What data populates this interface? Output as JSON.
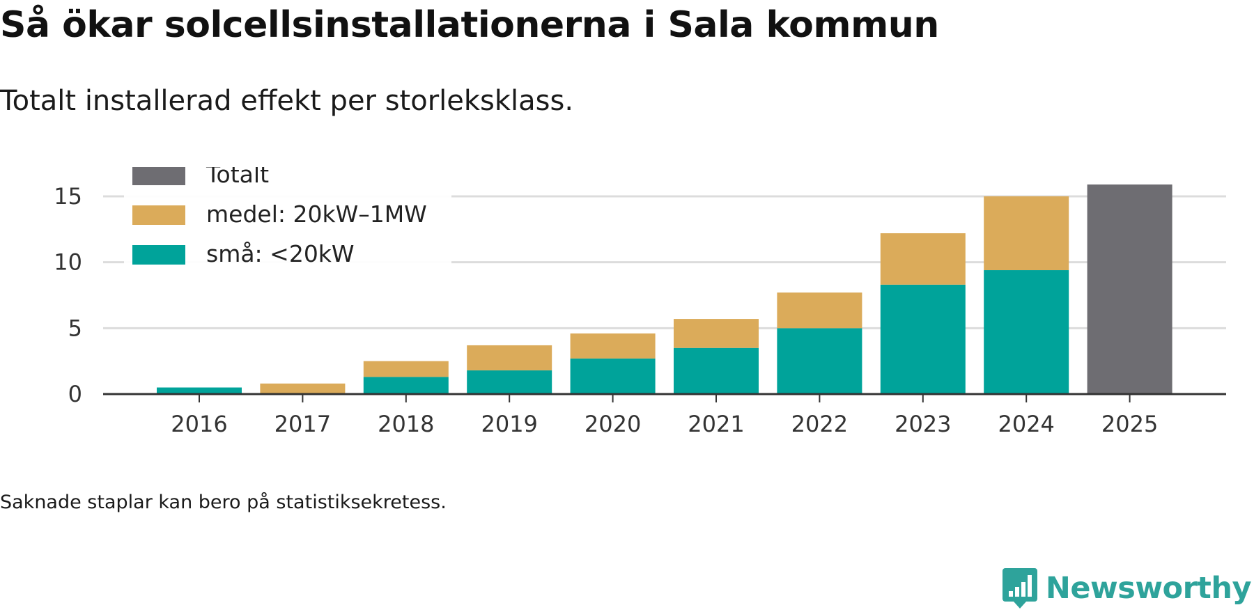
{
  "header": {
    "title": "Så ökar solcellsinstallationerna i Sala kommun",
    "subtitle": "Totalt installerad effekt per storleksklass."
  },
  "footer": {
    "note": "Saknade staplar kan bero på statistiksekretess.",
    "brand": "Newsworthy"
  },
  "colors": {
    "sma": "#00a39a",
    "medel": "#dbab5a",
    "totalt": "#6e6d72",
    "grid": "#dcdcdc",
    "axis": "#333333",
    "brand": "#2ea39b"
  },
  "chart_data": {
    "type": "bar",
    "stacked": true,
    "title": "Så ökar solcellsinstallationerna i Sala kommun",
    "subtitle": "Totalt installerad effekt per storleksklass.",
    "xlabel": "",
    "ylabel": "",
    "ylim": [
      0,
      16
    ],
    "yticks": [
      0,
      5,
      10,
      15
    ],
    "grid": true,
    "legend_position": "top-left",
    "categories": [
      "2016",
      "2017",
      "2018",
      "2019",
      "2020",
      "2021",
      "2022",
      "2023",
      "2024",
      "2025"
    ],
    "series": [
      {
        "name": "små: <20kW",
        "key": "sma",
        "values": [
          0.5,
          0,
          1.3,
          1.8,
          2.7,
          3.5,
          5.0,
          8.3,
          9.4,
          null
        ]
      },
      {
        "name": "medel: 20kW–1MW",
        "key": "medel",
        "values": [
          0,
          0.8,
          1.2,
          1.9,
          1.9,
          2.2,
          2.7,
          3.9,
          5.6,
          null
        ]
      },
      {
        "name": "Totalt",
        "key": "totalt",
        "values": [
          null,
          null,
          null,
          null,
          null,
          null,
          null,
          null,
          null,
          15.9
        ]
      }
    ],
    "legend": [
      "Totalt",
      "medel: 20kW–1MW",
      "små: <20kW"
    ]
  }
}
